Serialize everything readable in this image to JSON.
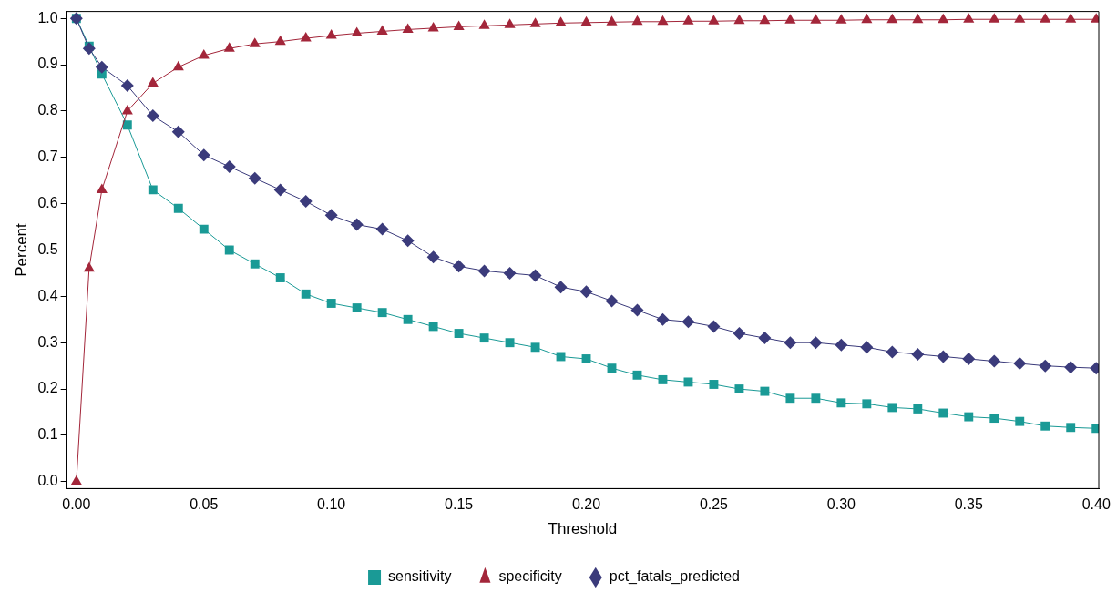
{
  "chart_data": {
    "type": "line",
    "xlabel": "Threshold",
    "ylabel": "Percent",
    "x": [
      0,
      0.005,
      0.01,
      0.02,
      0.03,
      0.04,
      0.05,
      0.06,
      0.07,
      0.08,
      0.09,
      0.1,
      0.11,
      0.12,
      0.13,
      0.14,
      0.15,
      0.16,
      0.17,
      0.18,
      0.19,
      0.2,
      0.21,
      0.22,
      0.23,
      0.24,
      0.25,
      0.26,
      0.27,
      0.28,
      0.29,
      0.3,
      0.31,
      0.32,
      0.33,
      0.34,
      0.35,
      0.36,
      0.37,
      0.38,
      0.39,
      0.4
    ],
    "series": [
      {
        "name": "sensitivity",
        "color": "#1a9a96",
        "marker": "square",
        "values": [
          1.0,
          0.94,
          0.88,
          0.77,
          0.63,
          0.59,
          0.545,
          0.5,
          0.47,
          0.44,
          0.405,
          0.385,
          0.375,
          0.365,
          0.35,
          0.335,
          0.32,
          0.31,
          0.3,
          0.29,
          0.27,
          0.265,
          0.245,
          0.23,
          0.22,
          0.215,
          0.21,
          0.2,
          0.195,
          0.18,
          0.18,
          0.17,
          0.168,
          0.16,
          0.157,
          0.148,
          0.14,
          0.137,
          0.13,
          0.12,
          0.117,
          0.115
        ]
      },
      {
        "name": "specificity",
        "color": "#a3263a",
        "marker": "triangle",
        "values": [
          0,
          0.46,
          0.63,
          0.8,
          0.86,
          0.895,
          0.92,
          0.935,
          0.945,
          0.95,
          0.957,
          0.963,
          0.968,
          0.972,
          0.976,
          0.979,
          0.982,
          0.984,
          0.986,
          0.988,
          0.99,
          0.991,
          0.992,
          0.993,
          0.993,
          0.994,
          0.994,
          0.995,
          0.995,
          0.996,
          0.996,
          0.996,
          0.997,
          0.997,
          0.997,
          0.997,
          0.998,
          0.998,
          0.998,
          0.998,
          0.998,
          0.998
        ]
      },
      {
        "name": "pct_fatals_predicted",
        "color": "#3b3b7b",
        "marker": "diamond",
        "values": [
          1.0,
          0.935,
          0.895,
          0.855,
          0.79,
          0.755,
          0.705,
          0.68,
          0.655,
          0.63,
          0.605,
          0.575,
          0.555,
          0.545,
          0.52,
          0.485,
          0.465,
          0.455,
          0.45,
          0.445,
          0.42,
          0.41,
          0.39,
          0.37,
          0.35,
          0.345,
          0.335,
          0.32,
          0.31,
          0.3,
          0.3,
          0.295,
          0.29,
          0.28,
          0.275,
          0.27,
          0.265,
          0.26,
          0.255,
          0.25,
          0.247,
          0.245
        ]
      }
    ],
    "xlim": [
      -0.004,
      0.401
    ],
    "ylim": [
      -0.015,
      1.015
    ],
    "xticks": [
      {
        "value": 0,
        "label": "0.00"
      },
      {
        "value": 0.05,
        "label": "0.05"
      },
      {
        "value": 0.1,
        "label": "0.10"
      },
      {
        "value": 0.15,
        "label": "0.15"
      },
      {
        "value": 0.2,
        "label": "0.20"
      },
      {
        "value": 0.25,
        "label": "0.25"
      },
      {
        "value": 0.3,
        "label": "0.30"
      },
      {
        "value": 0.35,
        "label": "0.35"
      },
      {
        "value": 0.4,
        "label": "0.40"
      }
    ],
    "yticks": [
      {
        "value": 0,
        "label": "0.0"
      },
      {
        "value": 0.1,
        "label": "0.1"
      },
      {
        "value": 0.2,
        "label": "0.2"
      },
      {
        "value": 0.3,
        "label": "0.3"
      },
      {
        "value": 0.4,
        "label": "0.4"
      },
      {
        "value": 0.5,
        "label": "0.5"
      },
      {
        "value": 0.6,
        "label": "0.6"
      },
      {
        "value": 0.7,
        "label": "0.7"
      },
      {
        "value": 0.8,
        "label": "0.8"
      },
      {
        "value": 0.9,
        "label": "0.9"
      },
      {
        "value": 1.0,
        "label": "1.0"
      }
    ],
    "grid": false,
    "legend": "bottom",
    "line_style": "solid"
  }
}
